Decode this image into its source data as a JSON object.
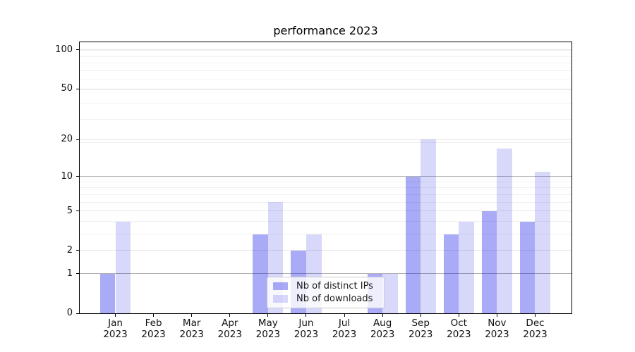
{
  "chart_data": {
    "type": "bar",
    "title": "performance 2023",
    "x_year": "2023",
    "categories": [
      "Jan",
      "Feb",
      "Mar",
      "Apr",
      "May",
      "Jun",
      "Jul",
      "Aug",
      "Sep",
      "Oct",
      "Nov",
      "Dec"
    ],
    "series": [
      {
        "name": "Nb of distinct IPs",
        "values": [
          1,
          0,
          0,
          0,
          3,
          2,
          0,
          1,
          10,
          3,
          5,
          4
        ],
        "color": "rgba(12,15,230,0.35)",
        "color_hex": "#aaabf6"
      },
      {
        "name": "Nb of downloads",
        "values": [
          4,
          0,
          0,
          0,
          6,
          3,
          0,
          1,
          20,
          4,
          17,
          11
        ],
        "color": "rgba(12,15,230,0.16)",
        "color_hex": "#d8d9fb"
      }
    ],
    "yticks": [
      0,
      1,
      2,
      5,
      10,
      20,
      50,
      100
    ],
    "y_scale": "log10(1+y)",
    "ylim": [
      0,
      114
    ],
    "grid": "both",
    "legend_labels": [
      "Nb of distinct IPs",
      "Nb of downloads"
    ],
    "legend_position": "inside-bottom-center"
  }
}
